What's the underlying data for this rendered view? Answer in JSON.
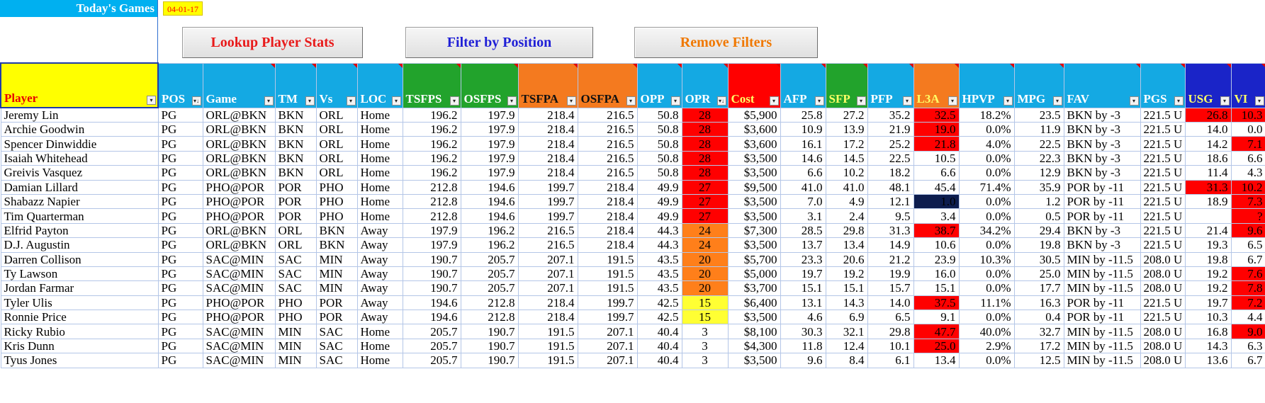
{
  "header": {
    "today_label": "Today's Games",
    "today_date": "04-01-17"
  },
  "buttons": {
    "lookup": "Lookup Player Stats",
    "filter": "Filter by Position",
    "remove": "Remove Filters"
  },
  "colors": {
    "header_blue": "#14a9e3",
    "header_green": "#22a32c",
    "header_orange": "#f47a1f",
    "header_red": "#ff0000",
    "header_navy": "#1a24c8",
    "player_yellow": "#ffff00",
    "hot_red": "#ff0000",
    "warm_orange": "#ff7f1a",
    "mild_yellow": "#ffff33",
    "cold_navy": "#0d1d4e"
  },
  "columns": [
    {
      "key": "player",
      "label": "Player",
      "style": "c-player",
      "dd": "▾"
    },
    {
      "key": "pos",
      "label": "POS",
      "style": "c-blue",
      "dd": "▾↓"
    },
    {
      "key": "game",
      "label": "Game",
      "style": "c-blue",
      "dd": "▾"
    },
    {
      "key": "tm",
      "label": "TM",
      "style": "c-blue",
      "dd": "▾"
    },
    {
      "key": "vs",
      "label": "Vs",
      "style": "c-blue",
      "dd": "▾"
    },
    {
      "key": "loc",
      "label": "LOC",
      "style": "c-blue",
      "dd": "▾"
    },
    {
      "key": "tsfps",
      "label": "TSFPS",
      "style": "c-green",
      "dd": "▾"
    },
    {
      "key": "osfps",
      "label": "OSFPS",
      "style": "c-green",
      "dd": "▾"
    },
    {
      "key": "tsfpa",
      "label": "TSFPA",
      "style": "c-orange",
      "dd": "▾"
    },
    {
      "key": "osfpa",
      "label": "OSFPA",
      "style": "c-orange",
      "dd": "▾"
    },
    {
      "key": "opp",
      "label": "OPP",
      "style": "c-blue",
      "dd": "▾"
    },
    {
      "key": "opr",
      "label": "OPR",
      "style": "c-blue",
      "dd": "▾↓"
    },
    {
      "key": "cost",
      "label": "Cost",
      "style": "c-red",
      "dd": "▾"
    },
    {
      "key": "afp",
      "label": "AFP",
      "style": "c-blue",
      "dd": "▾"
    },
    {
      "key": "sfp",
      "label": "SFP",
      "style": "c-sfp",
      "dd": "▾"
    },
    {
      "key": "pfp",
      "label": "PFP",
      "style": "c-blue",
      "dd": "▾"
    },
    {
      "key": "l3a",
      "label": "L3A",
      "style": "c-l3a",
      "dd": "▾"
    },
    {
      "key": "hpvp",
      "label": "HPVP",
      "style": "c-blue",
      "dd": "▾"
    },
    {
      "key": "mpg",
      "label": "MPG",
      "style": "c-blue",
      "dd": "▾"
    },
    {
      "key": "fav",
      "label": "FAV",
      "style": "c-blue",
      "dd": "▾"
    },
    {
      "key": "pgs",
      "label": "PGS",
      "style": "c-blue",
      "dd": "▾"
    },
    {
      "key": "usg",
      "label": "USG",
      "style": "c-navy",
      "dd": "▾"
    },
    {
      "key": "vi",
      "label": "VI",
      "style": "c-blue-y",
      "dd": "▾"
    }
  ],
  "rows": [
    {
      "player": "Jeremy Lin",
      "pos": "PG",
      "game": "ORL@BKN",
      "tm": "BKN",
      "vs": "ORL",
      "loc": "Home",
      "tsfps": "196.2",
      "osfps": "197.9",
      "tsfpa": "218.4",
      "osfpa": "216.5",
      "opp": "50.8",
      "opr": "28",
      "cost": "$5,900",
      "afp": "25.8",
      "sfp": "27.2",
      "pfp": "35.2",
      "l3a": "32.5",
      "hpvp": "18.2%",
      "mpg": "23.5",
      "fav": "BKN by -3",
      "pgs": "221.5 U",
      "usg": "26.8",
      "vi": "10.3",
      "opr_c": "red",
      "l3a_c": "hot",
      "usg_c": "hot",
      "vi_c": "hot"
    },
    {
      "player": "Archie Goodwin",
      "pos": "PG",
      "game": "ORL@BKN",
      "tm": "BKN",
      "vs": "ORL",
      "loc": "Home",
      "tsfps": "196.2",
      "osfps": "197.9",
      "tsfpa": "218.4",
      "osfpa": "216.5",
      "opp": "50.8",
      "opr": "28",
      "cost": "$3,600",
      "afp": "10.9",
      "sfp": "13.9",
      "pfp": "21.9",
      "l3a": "19.0",
      "hpvp": "0.0%",
      "mpg": "11.9",
      "fav": "BKN by -3",
      "pgs": "221.5 U",
      "usg": "14.0",
      "vi": "0.0",
      "opr_c": "red",
      "l3a_c": "hot",
      "usg_c": "",
      "vi_c": ""
    },
    {
      "player": "Spencer Dinwiddie",
      "pos": "PG",
      "game": "ORL@BKN",
      "tm": "BKN",
      "vs": "ORL",
      "loc": "Home",
      "tsfps": "196.2",
      "osfps": "197.9",
      "tsfpa": "218.4",
      "osfpa": "216.5",
      "opp": "50.8",
      "opr": "28",
      "cost": "$3,600",
      "afp": "16.1",
      "sfp": "17.2",
      "pfp": "25.2",
      "l3a": "21.8",
      "hpvp": "4.0%",
      "mpg": "22.5",
      "fav": "BKN by -3",
      "pgs": "221.5 U",
      "usg": "14.2",
      "vi": "7.1",
      "opr_c": "red",
      "l3a_c": "hot",
      "usg_c": "",
      "vi_c": "hot"
    },
    {
      "player": "Isaiah Whitehead",
      "pos": "PG",
      "game": "ORL@BKN",
      "tm": "BKN",
      "vs": "ORL",
      "loc": "Home",
      "tsfps": "196.2",
      "osfps": "197.9",
      "tsfpa": "218.4",
      "osfpa": "216.5",
      "opp": "50.8",
      "opr": "28",
      "cost": "$3,500",
      "afp": "14.6",
      "sfp": "14.5",
      "pfp": "22.5",
      "l3a": "10.5",
      "hpvp": "0.0%",
      "mpg": "22.3",
      "fav": "BKN by -3",
      "pgs": "221.5 U",
      "usg": "18.6",
      "vi": "6.6",
      "opr_c": "red",
      "l3a_c": "",
      "usg_c": "",
      "vi_c": ""
    },
    {
      "player": "Greivis Vasquez",
      "pos": "PG",
      "game": "ORL@BKN",
      "tm": "BKN",
      "vs": "ORL",
      "loc": "Home",
      "tsfps": "196.2",
      "osfps": "197.9",
      "tsfpa": "218.4",
      "osfpa": "216.5",
      "opp": "50.8",
      "opr": "28",
      "cost": "$3,500",
      "afp": "6.6",
      "sfp": "10.2",
      "pfp": "18.2",
      "l3a": "6.6",
      "hpvp": "0.0%",
      "mpg": "12.9",
      "fav": "BKN by -3",
      "pgs": "221.5 U",
      "usg": "11.4",
      "vi": "4.3",
      "opr_c": "red",
      "l3a_c": "",
      "usg_c": "",
      "vi_c": ""
    },
    {
      "player": "Damian Lillard",
      "pos": "PG",
      "game": "PHO@POR",
      "tm": "POR",
      "vs": "PHO",
      "loc": "Home",
      "tsfps": "212.8",
      "osfps": "194.6",
      "tsfpa": "199.7",
      "osfpa": "218.4",
      "opp": "49.9",
      "opr": "27",
      "cost": "$9,500",
      "afp": "41.0",
      "sfp": "41.0",
      "pfp": "48.1",
      "l3a": "45.4",
      "hpvp": "71.4%",
      "mpg": "35.9",
      "fav": "POR by -11",
      "pgs": "221.5 U",
      "usg": "31.3",
      "vi": "10.2",
      "opr_c": "red",
      "l3a_c": "",
      "usg_c": "hot",
      "vi_c": "hot"
    },
    {
      "player": "Shabazz Napier",
      "pos": "PG",
      "game": "PHO@POR",
      "tm": "POR",
      "vs": "PHO",
      "loc": "Home",
      "tsfps": "212.8",
      "osfps": "194.6",
      "tsfpa": "199.7",
      "osfpa": "218.4",
      "opp": "49.9",
      "opr": "27",
      "cost": "$3,500",
      "afp": "7.0",
      "sfp": "4.9",
      "pfp": "12.1",
      "l3a": "1.0",
      "hpvp": "0.0%",
      "mpg": "1.2",
      "fav": "POR by -11",
      "pgs": "221.5 U",
      "usg": "18.9",
      "vi": "7.3",
      "opr_c": "red",
      "l3a_c": "cold",
      "usg_c": "",
      "vi_c": "hot"
    },
    {
      "player": "Tim Quarterman",
      "pos": "PG",
      "game": "PHO@POR",
      "tm": "POR",
      "vs": "PHO",
      "loc": "Home",
      "tsfps": "212.8",
      "osfps": "194.6",
      "tsfpa": "199.7",
      "osfpa": "218.4",
      "opp": "49.9",
      "opr": "27",
      "cost": "$3,500",
      "afp": "3.1",
      "sfp": "2.4",
      "pfp": "9.5",
      "l3a": "3.4",
      "hpvp": "0.0%",
      "mpg": "0.5",
      "fav": "POR by -11",
      "pgs": "221.5 U ?",
      "usg": "",
      "vi": "?",
      "opr_c": "red",
      "l3a_c": "",
      "usg_c": "",
      "vi_c": "hot"
    },
    {
      "player": "Elfrid Payton",
      "pos": "PG",
      "game": "ORL@BKN",
      "tm": "ORL",
      "vs": "BKN",
      "loc": "Away",
      "tsfps": "197.9",
      "osfps": "196.2",
      "tsfpa": "216.5",
      "osfpa": "218.4",
      "opp": "44.3",
      "opr": "24",
      "cost": "$7,300",
      "afp": "28.5",
      "sfp": "29.8",
      "pfp": "31.3",
      "l3a": "38.7",
      "hpvp": "34.2%",
      "mpg": "29.4",
      "fav": "BKN by -3",
      "pgs": "221.5 U",
      "usg": "21.4",
      "vi": "9.6",
      "opr_c": "org",
      "l3a_c": "hot",
      "usg_c": "",
      "vi_c": "hot"
    },
    {
      "player": "D.J. Augustin",
      "pos": "PG",
      "game": "ORL@BKN",
      "tm": "ORL",
      "vs": "BKN",
      "loc": "Away",
      "tsfps": "197.9",
      "osfps": "196.2",
      "tsfpa": "216.5",
      "osfpa": "218.4",
      "opp": "44.3",
      "opr": "24",
      "cost": "$3,500",
      "afp": "13.7",
      "sfp": "13.4",
      "pfp": "14.9",
      "l3a": "10.6",
      "hpvp": "0.0%",
      "mpg": "19.8",
      "fav": "BKN by -3",
      "pgs": "221.5 U",
      "usg": "19.3",
      "vi": "6.5",
      "opr_c": "org",
      "l3a_c": "",
      "usg_c": "",
      "vi_c": ""
    },
    {
      "player": "Darren Collison",
      "pos": "PG",
      "game": "SAC@MIN",
      "tm": "SAC",
      "vs": "MIN",
      "loc": "Away",
      "tsfps": "190.7",
      "osfps": "205.7",
      "tsfpa": "207.1",
      "osfpa": "191.5",
      "opp": "43.5",
      "opr": "20",
      "cost": "$5,700",
      "afp": "23.3",
      "sfp": "20.6",
      "pfp": "21.2",
      "l3a": "23.9",
      "hpvp": "10.3%",
      "mpg": "30.5",
      "fav": "MIN by -11.5",
      "pgs": "208.0 U",
      "usg": "19.8",
      "vi": "6.7",
      "opr_c": "org",
      "l3a_c": "",
      "usg_c": "",
      "vi_c": ""
    },
    {
      "player": "Ty Lawson",
      "pos": "PG",
      "game": "SAC@MIN",
      "tm": "SAC",
      "vs": "MIN",
      "loc": "Away",
      "tsfps": "190.7",
      "osfps": "205.7",
      "tsfpa": "207.1",
      "osfpa": "191.5",
      "opp": "43.5",
      "opr": "20",
      "cost": "$5,000",
      "afp": "19.7",
      "sfp": "19.2",
      "pfp": "19.9",
      "l3a": "16.0",
      "hpvp": "0.0%",
      "mpg": "25.0",
      "fav": "MIN by -11.5",
      "pgs": "208.0 U",
      "usg": "19.2",
      "vi": "7.6",
      "opr_c": "org",
      "l3a_c": "",
      "usg_c": "",
      "vi_c": "hot"
    },
    {
      "player": "Jordan Farmar",
      "pos": "PG",
      "game": "SAC@MIN",
      "tm": "SAC",
      "vs": "MIN",
      "loc": "Away",
      "tsfps": "190.7",
      "osfps": "205.7",
      "tsfpa": "207.1",
      "osfpa": "191.5",
      "opp": "43.5",
      "opr": "20",
      "cost": "$3,700",
      "afp": "15.1",
      "sfp": "15.1",
      "pfp": "15.7",
      "l3a": "15.1",
      "hpvp": "0.0%",
      "mpg": "17.7",
      "fav": "MIN by -11.5",
      "pgs": "208.0 U",
      "usg": "19.2",
      "vi": "7.8",
      "opr_c": "org",
      "l3a_c": "",
      "usg_c": "",
      "vi_c": "hot"
    },
    {
      "player": "Tyler Ulis",
      "pos": "PG",
      "game": "PHO@POR",
      "tm": "PHO",
      "vs": "POR",
      "loc": "Away",
      "tsfps": "194.6",
      "osfps": "212.8",
      "tsfpa": "218.4",
      "osfpa": "199.7",
      "opp": "42.5",
      "opr": "15",
      "cost": "$6,400",
      "afp": "13.1",
      "sfp": "14.3",
      "pfp": "14.0",
      "l3a": "37.5",
      "hpvp": "11.1%",
      "mpg": "16.3",
      "fav": "POR by -11",
      "pgs": "221.5 U",
      "usg": "19.7",
      "vi": "7.2",
      "opr_c": "yel",
      "l3a_c": "hot",
      "usg_c": "",
      "vi_c": "hot"
    },
    {
      "player": "Ronnie Price",
      "pos": "PG",
      "game": "PHO@POR",
      "tm": "PHO",
      "vs": "POR",
      "loc": "Away",
      "tsfps": "194.6",
      "osfps": "212.8",
      "tsfpa": "218.4",
      "osfpa": "199.7",
      "opp": "42.5",
      "opr": "15",
      "cost": "$3,500",
      "afp": "4.6",
      "sfp": "6.9",
      "pfp": "6.5",
      "l3a": "9.1",
      "hpvp": "0.0%",
      "mpg": "0.4",
      "fav": "POR by -11",
      "pgs": "221.5 U",
      "usg": "10.3",
      "vi": "4.4",
      "opr_c": "yel",
      "l3a_c": "",
      "usg_c": "",
      "vi_c": ""
    },
    {
      "player": "Ricky Rubio",
      "pos": "PG",
      "game": "SAC@MIN",
      "tm": "MIN",
      "vs": "SAC",
      "loc": "Home",
      "tsfps": "205.7",
      "osfps": "190.7",
      "tsfpa": "191.5",
      "osfpa": "207.1",
      "opp": "40.4",
      "opr": "3",
      "cost": "$8,100",
      "afp": "30.3",
      "sfp": "32.1",
      "pfp": "29.8",
      "l3a": "47.7",
      "hpvp": "40.0%",
      "mpg": "32.7",
      "fav": "MIN by -11.5",
      "pgs": "208.0 U",
      "usg": "16.8",
      "vi": "9.0",
      "opr_c": "",
      "l3a_c": "hot",
      "usg_c": "",
      "vi_c": "hot"
    },
    {
      "player": "Kris Dunn",
      "pos": "PG",
      "game": "SAC@MIN",
      "tm": "MIN",
      "vs": "SAC",
      "loc": "Home",
      "tsfps": "205.7",
      "osfps": "190.7",
      "tsfpa": "191.5",
      "osfpa": "207.1",
      "opp": "40.4",
      "opr": "3",
      "cost": "$4,300",
      "afp": "11.8",
      "sfp": "12.4",
      "pfp": "10.1",
      "l3a": "25.0",
      "hpvp": "2.9%",
      "mpg": "17.2",
      "fav": "MIN by -11.5",
      "pgs": "208.0 U",
      "usg": "14.3",
      "vi": "6.3",
      "opr_c": "",
      "l3a_c": "hot",
      "usg_c": "",
      "vi_c": ""
    },
    {
      "player": "Tyus Jones",
      "pos": "PG",
      "game": "SAC@MIN",
      "tm": "MIN",
      "vs": "SAC",
      "loc": "Home",
      "tsfps": "205.7",
      "osfps": "190.7",
      "tsfpa": "191.5",
      "osfpa": "207.1",
      "opp": "40.4",
      "opr": "3",
      "cost": "$3,500",
      "afp": "9.6",
      "sfp": "8.4",
      "pfp": "6.1",
      "l3a": "13.4",
      "hpvp": "0.0%",
      "mpg": "12.5",
      "fav": "MIN by -11.5",
      "pgs": "208.0 U",
      "usg": "13.6",
      "vi": "6.7",
      "opr_c": "",
      "l3a_c": "",
      "usg_c": "",
      "vi_c": ""
    }
  ]
}
